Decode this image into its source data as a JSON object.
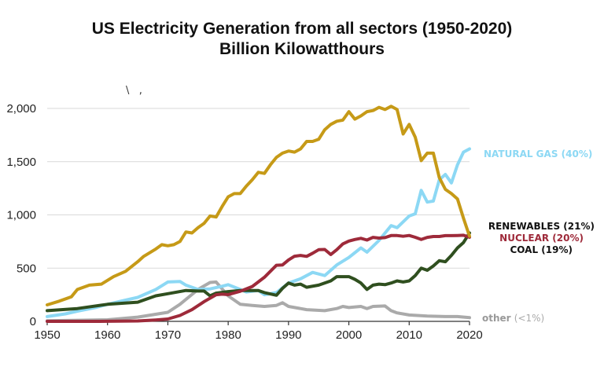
{
  "chart_data": {
    "type": "line",
    "title": "US Electricity Generation from all sectors (1950-2020)",
    "subtitle": "Billion Kilowatthours",
    "xlabel": "",
    "ylabel": "",
    "xlim": [
      1950,
      2020
    ],
    "ylim": [
      0,
      2100
    ],
    "x_ticks": [
      1950,
      1960,
      1970,
      1980,
      1990,
      2000,
      2010,
      2020
    ],
    "x_tick_labels": [
      "1950",
      "1960",
      "1970",
      "1980",
      "1990",
      "2000",
      "2010",
      "2020"
    ],
    "y_ticks": [
      0,
      500,
      1000,
      1500,
      2000
    ],
    "y_tick_labels": [
      "0",
      "500",
      "1,000",
      "1,500",
      "2,000"
    ],
    "grid": true,
    "legend": "direct labels at right end of lines",
    "series": [
      {
        "name": "other",
        "label": "other",
        "label_suffix": "(<1%)",
        "color": "#aaaaaa",
        "points": [
          [
            1950,
            5
          ],
          [
            1955,
            10
          ],
          [
            1960,
            15
          ],
          [
            1965,
            40
          ],
          [
            1970,
            85
          ],
          [
            1972,
            160
          ],
          [
            1975,
            300
          ],
          [
            1977,
            365
          ],
          [
            1978,
            370
          ],
          [
            1980,
            240
          ],
          [
            1982,
            160
          ],
          [
            1984,
            150
          ],
          [
            1986,
            140
          ],
          [
            1988,
            150
          ],
          [
            1989,
            175
          ],
          [
            1990,
            140
          ],
          [
            1993,
            110
          ],
          [
            1996,
            100
          ],
          [
            1998,
            120
          ],
          [
            1999,
            140
          ],
          [
            2000,
            130
          ],
          [
            2002,
            140
          ],
          [
            2003,
            120
          ],
          [
            2004,
            140
          ],
          [
            2006,
            145
          ],
          [
            2007,
            100
          ],
          [
            2008,
            80
          ],
          [
            2010,
            60
          ],
          [
            2013,
            50
          ],
          [
            2016,
            45
          ],
          [
            2018,
            45
          ],
          [
            2020,
            35
          ]
        ]
      },
      {
        "name": "natural gas",
        "label": "NATURAL GAS (40%)",
        "color": "#8cd8f4",
        "points": [
          [
            1950,
            45
          ],
          [
            1953,
            70
          ],
          [
            1955,
            95
          ],
          [
            1958,
            130
          ],
          [
            1960,
            160
          ],
          [
            1963,
            200
          ],
          [
            1965,
            225
          ],
          [
            1968,
            300
          ],
          [
            1970,
            370
          ],
          [
            1972,
            375
          ],
          [
            1973,
            340
          ],
          [
            1975,
            300
          ],
          [
            1977,
            305
          ],
          [
            1979,
            330
          ],
          [
            1980,
            345
          ],
          [
            1982,
            300
          ],
          [
            1983,
            275
          ],
          [
            1985,
            290
          ],
          [
            1986,
            250
          ],
          [
            1988,
            270
          ],
          [
            1990,
            360
          ],
          [
            1992,
            400
          ],
          [
            1994,
            460
          ],
          [
            1996,
            430
          ],
          [
            1998,
            530
          ],
          [
            2000,
            600
          ],
          [
            2002,
            690
          ],
          [
            2003,
            650
          ],
          [
            2005,
            760
          ],
          [
            2007,
            900
          ],
          [
            2008,
            880
          ],
          [
            2010,
            990
          ],
          [
            2011,
            1010
          ],
          [
            2012,
            1230
          ],
          [
            2013,
            1120
          ],
          [
            2014,
            1130
          ],
          [
            2015,
            1330
          ],
          [
            2016,
            1380
          ],
          [
            2017,
            1300
          ],
          [
            2018,
            1470
          ],
          [
            2019,
            1590
          ],
          [
            2020,
            1620
          ]
        ]
      },
      {
        "name": "coal",
        "label": "COAL (19%)",
        "color": "#2f4f1f",
        "points": [
          [
            1950,
            100
          ],
          [
            1955,
            120
          ],
          [
            1960,
            160
          ],
          [
            1965,
            180
          ],
          [
            1968,
            240
          ],
          [
            1970,
            260
          ],
          [
            1973,
            290
          ],
          [
            1975,
            285
          ],
          [
            1976,
            285
          ],
          [
            1977,
            240
          ],
          [
            1978,
            265
          ],
          [
            1980,
            280
          ],
          [
            1982,
            290
          ],
          [
            1985,
            290
          ],
          [
            1986,
            270
          ],
          [
            1988,
            245
          ],
          [
            1989,
            310
          ],
          [
            1990,
            360
          ],
          [
            1991,
            340
          ],
          [
            1992,
            350
          ],
          [
            1993,
            320
          ],
          [
            1995,
            340
          ],
          [
            1997,
            380
          ],
          [
            1998,
            420
          ],
          [
            2000,
            420
          ],
          [
            2001,
            395
          ],
          [
            2002,
            360
          ],
          [
            2003,
            300
          ],
          [
            2004,
            340
          ],
          [
            2005,
            350
          ],
          [
            2006,
            345
          ],
          [
            2007,
            360
          ],
          [
            2008,
            380
          ],
          [
            2009,
            370
          ],
          [
            2010,
            380
          ],
          [
            2011,
            430
          ],
          [
            2012,
            500
          ],
          [
            2013,
            480
          ],
          [
            2014,
            520
          ],
          [
            2015,
            570
          ],
          [
            2016,
            560
          ],
          [
            2017,
            620
          ],
          [
            2018,
            690
          ],
          [
            2019,
            740
          ],
          [
            2020,
            830
          ]
        ]
      },
      {
        "name": "nuclear",
        "label": "NUCLEAR (20%)",
        "color": "#9e2a3a",
        "points": [
          [
            1950,
            0
          ],
          [
            1957,
            0
          ],
          [
            1960,
            1
          ],
          [
            1965,
            4
          ],
          [
            1968,
            13
          ],
          [
            1970,
            22
          ],
          [
            1972,
            55
          ],
          [
            1974,
            110
          ],
          [
            1976,
            185
          ],
          [
            1978,
            250
          ],
          [
            1979,
            255
          ],
          [
            1980,
            251
          ],
          [
            1982,
            283
          ],
          [
            1984,
            328
          ],
          [
            1986,
            414
          ],
          [
            1988,
            527
          ],
          [
            1989,
            530
          ],
          [
            1990,
            577
          ],
          [
            1991,
            612
          ],
          [
            1992,
            619
          ],
          [
            1993,
            610
          ],
          [
            1994,
            640
          ],
          [
            1995,
            673
          ],
          [
            1996,
            675
          ],
          [
            1997,
            628
          ],
          [
            1998,
            673
          ],
          [
            1999,
            728
          ],
          [
            2000,
            754
          ],
          [
            2001,
            769
          ],
          [
            2002,
            780
          ],
          [
            2003,
            764
          ],
          [
            2004,
            789
          ],
          [
            2005,
            782
          ],
          [
            2006,
            787
          ],
          [
            2007,
            806
          ],
          [
            2008,
            806
          ],
          [
            2009,
            799
          ],
          [
            2010,
            807
          ],
          [
            2011,
            790
          ],
          [
            2012,
            769
          ],
          [
            2013,
            789
          ],
          [
            2014,
            797
          ],
          [
            2015,
            797
          ],
          [
            2016,
            805
          ],
          [
            2017,
            805
          ],
          [
            2018,
            807
          ],
          [
            2019,
            809
          ],
          [
            2020,
            790
          ]
        ]
      },
      {
        "name": "renewables",
        "label": "RENEWABLES (21%)",
        "color": "#c69a17",
        "points": [
          [
            1950,
            155
          ],
          [
            1952,
            190
          ],
          [
            1954,
            230
          ],
          [
            1955,
            300
          ],
          [
            1957,
            340
          ],
          [
            1959,
            350
          ],
          [
            1961,
            420
          ],
          [
            1963,
            470
          ],
          [
            1965,
            560
          ],
          [
            1966,
            610
          ],
          [
            1968,
            680
          ],
          [
            1969,
            720
          ],
          [
            1970,
            710
          ],
          [
            1971,
            720
          ],
          [
            1972,
            750
          ],
          [
            1973,
            840
          ],
          [
            1974,
            830
          ],
          [
            1975,
            880
          ],
          [
            1976,
            920
          ],
          [
            1977,
            990
          ],
          [
            1978,
            980
          ],
          [
            1979,
            1080
          ],
          [
            1980,
            1170
          ],
          [
            1981,
            1200
          ],
          [
            1982,
            1200
          ],
          [
            1983,
            1270
          ],
          [
            1984,
            1330
          ],
          [
            1985,
            1400
          ],
          [
            1986,
            1390
          ],
          [
            1987,
            1470
          ],
          [
            1988,
            1540
          ],
          [
            1989,
            1580
          ],
          [
            1990,
            1600
          ],
          [
            1991,
            1590
          ],
          [
            1992,
            1620
          ],
          [
            1993,
            1690
          ],
          [
            1994,
            1690
          ],
          [
            1995,
            1710
          ],
          [
            1996,
            1800
          ],
          [
            1997,
            1850
          ],
          [
            1998,
            1880
          ],
          [
            1999,
            1890
          ],
          [
            2000,
            1970
          ],
          [
            2001,
            1900
          ],
          [
            2002,
            1930
          ],
          [
            2003,
            1970
          ],
          [
            2004,
            1980
          ],
          [
            2005,
            2010
          ],
          [
            2006,
            1990
          ],
          [
            2007,
            2020
          ],
          [
            2008,
            1990
          ],
          [
            2009,
            1760
          ],
          [
            2010,
            1850
          ],
          [
            2011,
            1730
          ],
          [
            2012,
            1510
          ],
          [
            2013,
            1580
          ],
          [
            2014,
            1580
          ],
          [
            2015,
            1350
          ],
          [
            2016,
            1240
          ],
          [
            2017,
            1200
          ],
          [
            2018,
            1150
          ],
          [
            2019,
            970
          ],
          [
            2020,
            800
          ]
        ]
      }
    ],
    "annotations": [
      "\\   ,"
    ]
  }
}
